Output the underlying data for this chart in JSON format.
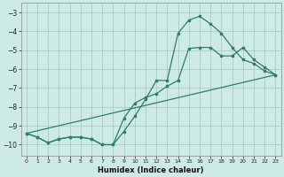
{
  "line1_x": [
    0,
    1,
    2,
    3,
    4,
    5,
    6,
    7,
    8,
    9,
    10,
    11,
    12,
    13,
    14,
    15,
    16,
    17,
    18,
    19,
    20,
    21,
    22,
    23
  ],
  "line1_y": [
    -9.4,
    -9.6,
    -9.9,
    -9.7,
    -9.6,
    -9.6,
    -9.7,
    -10.0,
    -10.0,
    -9.3,
    -8.5,
    -7.6,
    -6.6,
    -6.6,
    -4.1,
    -3.4,
    -3.2,
    -3.6,
    -4.1,
    -4.85,
    -5.5,
    -5.7,
    -6.1,
    -6.3
  ],
  "line2_x": [
    0,
    1,
    2,
    3,
    4,
    5,
    6,
    7,
    8,
    9,
    10,
    11,
    12,
    13,
    14,
    15,
    16,
    17,
    18,
    19,
    20,
    21,
    22,
    23
  ],
  "line2_y": [
    -9.4,
    -9.6,
    -9.9,
    -9.7,
    -9.6,
    -9.6,
    -9.7,
    -10.0,
    -10.0,
    -8.6,
    -7.8,
    -7.5,
    -7.3,
    -6.9,
    -6.6,
    -4.9,
    -4.85,
    -4.85,
    -5.3,
    -5.3,
    -4.85,
    -5.5,
    -5.9,
    -6.3
  ],
  "line3_x": [
    0,
    23
  ],
  "line3_y": [
    -9.4,
    -6.3
  ],
  "color": "#2e7d6e",
  "xlabel": "Humidex (Indice chaleur)",
  "bg_color": "#ceeae4",
  "grid_color": "#aaccc5",
  "xlim": [
    -0.5,
    23.5
  ],
  "ylim": [
    -10.6,
    -2.5
  ],
  "yticks": [
    -10,
    -9,
    -8,
    -7,
    -6,
    -5,
    -4,
    -3
  ],
  "xticks": [
    0,
    1,
    2,
    3,
    4,
    5,
    6,
    7,
    8,
    9,
    10,
    11,
    12,
    13,
    14,
    15,
    16,
    17,
    18,
    19,
    20,
    21,
    22,
    23
  ],
  "figsize": [
    3.2,
    2.0
  ],
  "dpi": 100
}
